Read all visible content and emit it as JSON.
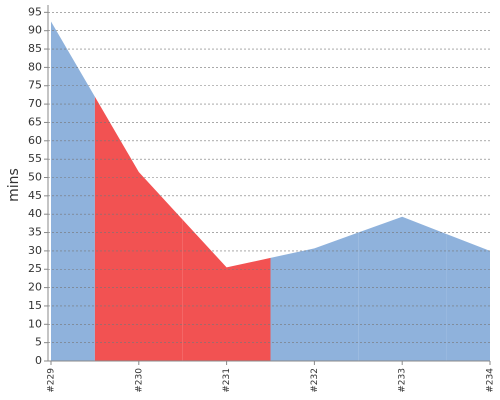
{
  "chart_data": {
    "type": "area",
    "y_label": "mins",
    "categories": [
      "#229",
      "#230",
      "#231",
      "#232",
      "#233",
      "#234"
    ],
    "values": [
      92.5,
      51.5,
      25.5,
      30.7,
      39.3,
      30
    ],
    "colors": [
      "#8fb2dc",
      "#f25252",
      "#f25252",
      "#8fb2dc",
      "#8fb2dc",
      "#8fb2dc"
    ],
    "ylim": [
      0,
      97
    ],
    "yticks": [
      0,
      5,
      10,
      15,
      20,
      25,
      30,
      35,
      40,
      45,
      50,
      55,
      60,
      65,
      70,
      75,
      80,
      85,
      90,
      95
    ],
    "grid": true
  }
}
